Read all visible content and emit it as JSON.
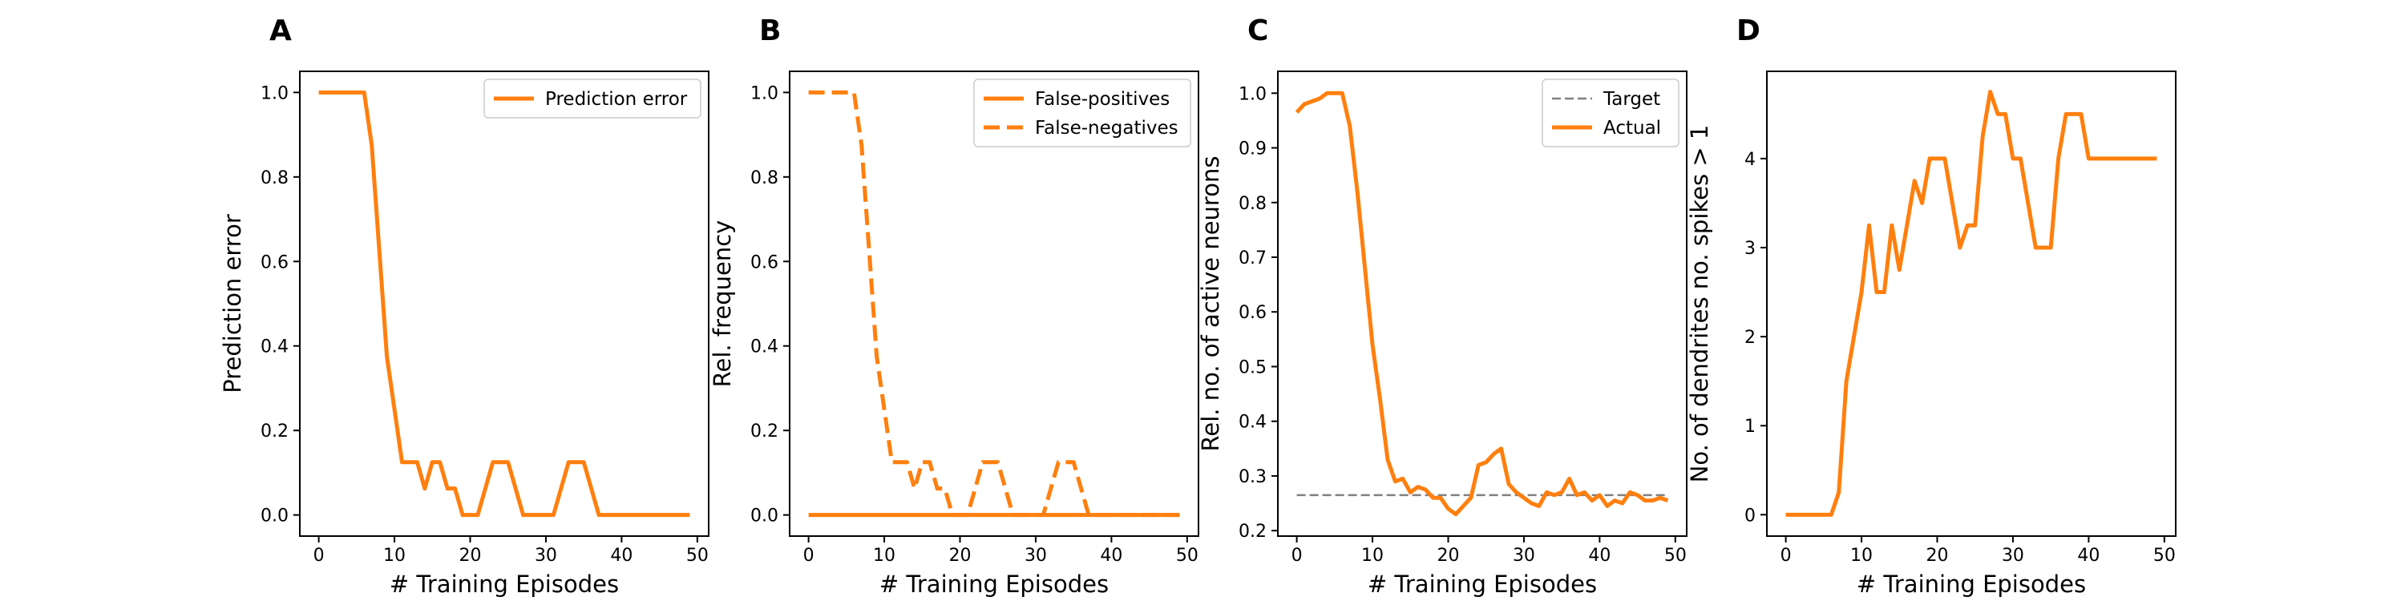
{
  "colors": {
    "orange": "#ff7f0e",
    "gray": "#808080"
  },
  "chart_data": [
    {
      "panel": "A",
      "type": "line",
      "xlabel": "# Training Episodes",
      "ylabel": "Prediction error",
      "xlim": [
        -2.5,
        51.5
      ],
      "ylim": [
        -0.05,
        1.05
      ],
      "xticks": [
        0,
        10,
        20,
        30,
        40,
        50
      ],
      "yticks": [
        0.0,
        0.2,
        0.4,
        0.6,
        0.8,
        1.0
      ],
      "ytick_labels": [
        "0.0",
        "0.2",
        "0.4",
        "0.6",
        "0.8",
        "1.0"
      ],
      "grid": false,
      "legend_position": "upper-right",
      "series": [
        {
          "name": "Prediction error",
          "style": "solid",
          "color": "#ff7f0e",
          "x": [
            0,
            1,
            2,
            3,
            4,
            5,
            6,
            7,
            8,
            9,
            10,
            11,
            12,
            13,
            14,
            15,
            16,
            17,
            18,
            19,
            20,
            21,
            22,
            23,
            24,
            25,
            26,
            27,
            28,
            29,
            30,
            31,
            32,
            33,
            34,
            35,
            36,
            37,
            38,
            39,
            40,
            41,
            42,
            43,
            44,
            45,
            46,
            47,
            48,
            49
          ],
          "y": [
            1,
            1,
            1,
            1,
            1,
            1,
            1,
            0.875,
            0.625,
            0.375,
            0.25,
            0.125,
            0.125,
            0.125,
            0.0625,
            0.125,
            0.125,
            0.0625,
            0.0625,
            0,
            0,
            0,
            0.0625,
            0.125,
            0.125,
            0.125,
            0.0625,
            0,
            0,
            0,
            0,
            0,
            0.0625,
            0.125,
            0.125,
            0.125,
            0.0625,
            0,
            0,
            0,
            0,
            0,
            0,
            0,
            0,
            0,
            0,
            0,
            0,
            0
          ]
        }
      ]
    },
    {
      "panel": "B",
      "type": "line",
      "xlabel": "# Training Episodes",
      "ylabel": "Rel. frequency",
      "xlim": [
        -2.5,
        51.5
      ],
      "ylim": [
        -0.05,
        1.05
      ],
      "xticks": [
        0,
        10,
        20,
        30,
        40,
        50
      ],
      "yticks": [
        0.0,
        0.2,
        0.4,
        0.6,
        0.8,
        1.0
      ],
      "ytick_labels": [
        "0.0",
        "0.2",
        "0.4",
        "0.6",
        "0.8",
        "1.0"
      ],
      "grid": false,
      "legend_position": "upper-right",
      "series": [
        {
          "name": "False-positives",
          "style": "solid",
          "color": "#ff7f0e",
          "x": [
            0,
            49
          ],
          "y": [
            0,
            0
          ]
        },
        {
          "name": "False-negatives",
          "style": "dashed",
          "color": "#ff7f0e",
          "x": [
            0,
            1,
            2,
            3,
            4,
            5,
            6,
            7,
            8,
            9,
            10,
            11,
            12,
            13,
            14,
            15,
            16,
            17,
            18,
            19,
            20,
            21,
            22,
            23,
            24,
            25,
            26,
            27,
            28,
            29,
            30,
            31,
            32,
            33,
            34,
            35,
            36,
            37,
            38,
            39,
            40,
            41,
            42,
            43,
            44,
            45,
            46,
            47,
            48,
            49
          ],
          "y": [
            1,
            1,
            1,
            1,
            1,
            1,
            1,
            0.875,
            0.625,
            0.375,
            0.25,
            0.125,
            0.125,
            0.125,
            0.0625,
            0.125,
            0.125,
            0.0625,
            0.0625,
            0,
            0,
            0,
            0.0625,
            0.125,
            0.125,
            0.125,
            0.0625,
            0,
            0,
            0,
            0,
            0,
            0.0625,
            0.125,
            0.125,
            0.125,
            0.0625,
            0,
            0,
            0,
            0,
            0,
            0,
            0,
            0,
            0,
            0,
            0,
            0,
            0
          ]
        }
      ]
    },
    {
      "panel": "C",
      "type": "line",
      "xlabel": "# Training Episodes",
      "ylabel": "Rel. no. of active neurons",
      "xlim": [
        -2.5,
        51.5
      ],
      "ylim": [
        0.19,
        1.04
      ],
      "xticks": [
        0,
        10,
        20,
        30,
        40,
        50
      ],
      "yticks": [
        0.2,
        0.3,
        0.4,
        0.5,
        0.6,
        0.7,
        0.8,
        0.9,
        1.0
      ],
      "ytick_labels": [
        "0.2",
        "0.3",
        "0.4",
        "0.5",
        "0.6",
        "0.7",
        "0.8",
        "0.9",
        "1.0"
      ],
      "grid": false,
      "legend_position": "upper-right",
      "series": [
        {
          "name": "Target",
          "style": "dashed",
          "color": "#808080",
          "x": [
            0,
            49
          ],
          "y": [
            0.265,
            0.265
          ]
        },
        {
          "name": "Actual",
          "style": "solid",
          "color": "#ff7f0e",
          "x": [
            0,
            1,
            2,
            3,
            4,
            5,
            6,
            7,
            8,
            9,
            10,
            11,
            12,
            13,
            14,
            15,
            16,
            17,
            18,
            19,
            20,
            21,
            22,
            23,
            24,
            25,
            26,
            27,
            28,
            29,
            30,
            31,
            32,
            33,
            34,
            35,
            36,
            37,
            38,
            39,
            40,
            41,
            42,
            43,
            44,
            45,
            46,
            47,
            48,
            49
          ],
          "y": [
            0.965,
            0.98,
            0.985,
            0.99,
            1.0,
            1.0,
            1.0,
            0.94,
            0.82,
            0.68,
            0.54,
            0.44,
            0.33,
            0.29,
            0.295,
            0.27,
            0.28,
            0.275,
            0.26,
            0.26,
            0.24,
            0.23,
            0.245,
            0.26,
            0.32,
            0.325,
            0.34,
            0.35,
            0.285,
            0.27,
            0.26,
            0.25,
            0.245,
            0.27,
            0.265,
            0.27,
            0.295,
            0.265,
            0.27,
            0.255,
            0.265,
            0.245,
            0.255,
            0.25,
            0.27,
            0.265,
            0.255,
            0.255,
            0.26,
            0.255
          ]
        }
      ]
    },
    {
      "panel": "D",
      "type": "line",
      "xlabel": "# Training Episodes",
      "ylabel": "No. of dendrites no. spikes > 1",
      "xlim": [
        -2.5,
        51.5
      ],
      "ylim": [
        -0.24,
        4.98
      ],
      "xticks": [
        0,
        10,
        20,
        30,
        40,
        50
      ],
      "yticks": [
        0,
        1,
        2,
        3,
        4
      ],
      "ytick_labels": [
        "0",
        "1",
        "2",
        "3",
        "4"
      ],
      "grid": false,
      "series": [
        {
          "style": "solid",
          "color": "#ff7f0e",
          "x": [
            0,
            1,
            2,
            3,
            4,
            5,
            6,
            7,
            8,
            9,
            10,
            11,
            12,
            13,
            14,
            15,
            16,
            17,
            18,
            19,
            20,
            21,
            22,
            23,
            24,
            25,
            26,
            27,
            28,
            29,
            30,
            31,
            32,
            33,
            34,
            35,
            36,
            37,
            38,
            39,
            40,
            41,
            42,
            43,
            44,
            45,
            46,
            47,
            48,
            49
          ],
          "y": [
            0,
            0,
            0,
            0,
            0,
            0,
            0,
            0.25,
            1.5,
            2,
            2.5,
            3.25,
            2.5,
            2.5,
            3.25,
            2.75,
            3.25,
            3.75,
            3.5,
            4,
            4,
            4,
            3.5,
            3,
            3.25,
            3.25,
            4.25,
            4.75,
            4.5,
            4.5,
            4,
            4,
            3.5,
            3,
            3,
            3,
            4,
            4.5,
            4.5,
            4.5,
            4,
            4,
            4,
            4,
            4,
            4,
            4,
            4,
            4,
            4
          ]
        }
      ]
    }
  ]
}
